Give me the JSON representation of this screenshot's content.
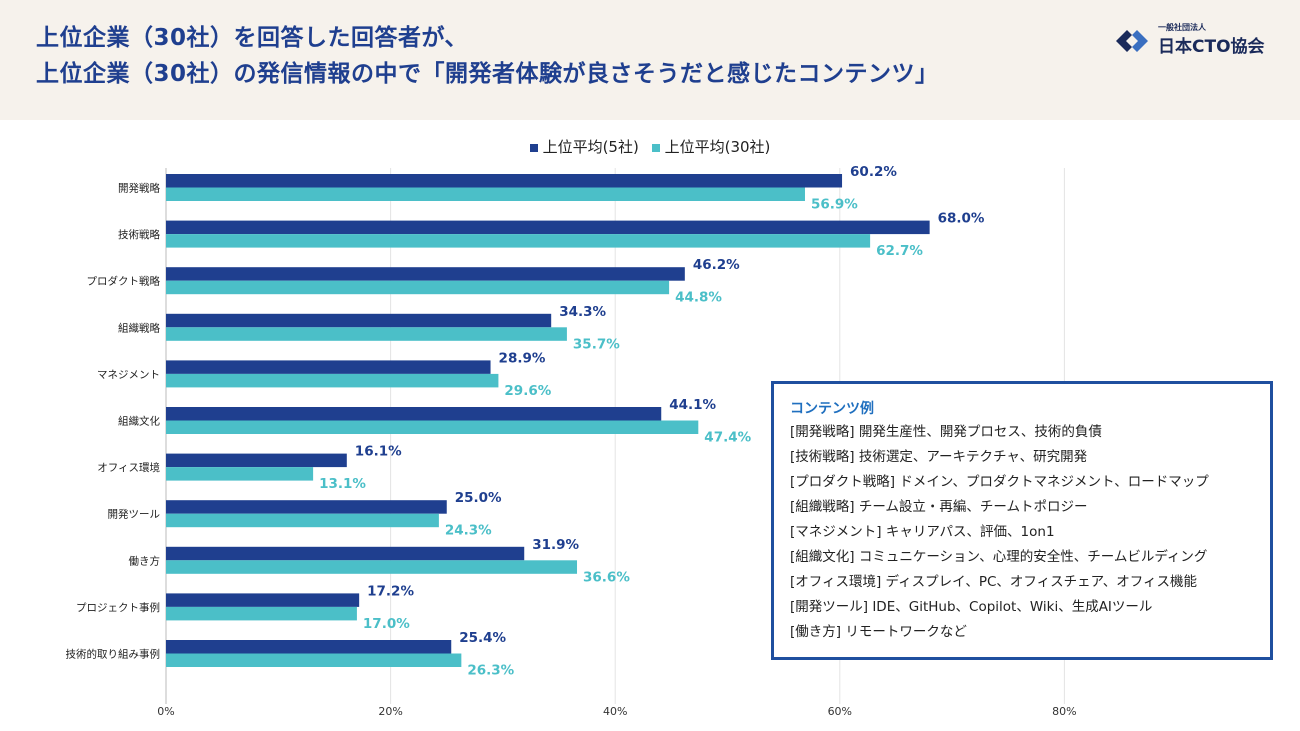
{
  "title": {
    "line1": "上位企業（30社）を回答した回答者が、",
    "line2": "上位企業（30社）の発信情報の中で「開発者体験が良さそうだと感じたコンテンツ」"
  },
  "logo": {
    "small": "一般社団法人",
    "main": "日本CTO協会"
  },
  "colors": {
    "series1": "#1f3f8f",
    "series2": "#4bbfc8",
    "grid": "#e4e4e4",
    "text": "#222222",
    "box_border": "#1f4f9f",
    "box_title": "#1f6fbf",
    "header_bg": "#f6f2ec"
  },
  "chart_data": {
    "type": "bar",
    "orientation": "horizontal",
    "categories": [
      "開発戦略",
      "技術戦略",
      "プロダクト戦略",
      "組織戦略",
      "マネジメント",
      "組織文化",
      "オフィス環境",
      "開発ツール",
      "働き方",
      "プロジェクト事例",
      "技術的取り組み事例"
    ],
    "series": [
      {
        "name": "上位平均(5社)",
        "color": "#1f3f8f",
        "values": [
          60.2,
          68.0,
          46.2,
          34.3,
          28.9,
          44.1,
          16.1,
          25.0,
          31.9,
          17.2,
          25.4
        ],
        "labels": [
          "60.2%",
          "68.0%",
          "46.2%",
          "34.3%",
          "28.9%",
          "44.1%",
          "16.1%",
          "25.0%",
          "31.9%",
          "17.2%",
          "25.4%"
        ]
      },
      {
        "name": "上位平均(30社)",
        "color": "#4bbfc8",
        "values": [
          56.9,
          62.7,
          44.8,
          35.7,
          29.6,
          47.4,
          13.1,
          24.3,
          36.6,
          17.0,
          26.3
        ],
        "labels": [
          "56.9%",
          "62.7%",
          "44.8%",
          "35.7%",
          "29.6%",
          "47.4%",
          "13.1%",
          "24.3%",
          "36.6%",
          "17.0%",
          "26.3%"
        ]
      }
    ],
    "xlim": [
      0,
      90
    ],
    "xticks": [
      0,
      20,
      40,
      60,
      80
    ],
    "xtick_labels": [
      "0%",
      "20%",
      "40%",
      "60%",
      "80%"
    ],
    "grid": true,
    "legend": "top-center"
  },
  "contents_box": {
    "title": "コンテンツ例",
    "lines": [
      "[開発戦略] 開発生産性、開発プロセス、技術的負債",
      "[技術戦略] 技術選定、アーキテクチャ、研究開発",
      "[プロダクト戦略] ドメイン、プロダクトマネジメント、ロードマップ",
      "[組織戦略] チーム設立・再編、チームトポロジー",
      "[マネジメント] キャリアパス、評価、1on1",
      "[組織文化] コミュニケーション、心理的安全性、チームビルディング",
      "[オフィス環境] ディスプレイ、PC、オフィスチェア、オフィス機能",
      "[開発ツール] IDE、GitHub、Copilot、Wiki、生成AIツール",
      "[働き方] リモートワークなど"
    ]
  }
}
